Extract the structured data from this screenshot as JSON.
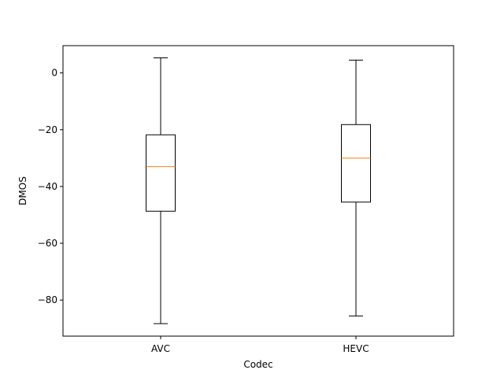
{
  "chart_data": {
    "type": "box",
    "title": "",
    "xlabel": "Codec",
    "ylabel": "DMOS",
    "categories": [
      "AVC",
      "HEVC"
    ],
    "boxes": [
      {
        "label": "AVC",
        "whisker_low": -88.3,
        "q1": -48.7,
        "median": -33.0,
        "q3": -21.8,
        "whisker_high": 5.3
      },
      {
        "label": "HEVC",
        "whisker_low": -85.6,
        "q1": -45.5,
        "median": -30.0,
        "q3": -18.2,
        "whisker_high": 4.5
      }
    ],
    "ylim": [
      -92.7,
      9.6
    ],
    "yticks": [
      0,
      -20,
      -40,
      -60,
      -80
    ],
    "ytick_labels": [
      "0",
      "−20",
      "−40",
      "−60",
      "−80"
    ],
    "grid": false,
    "legend": "none",
    "colors": {
      "box": "#000000",
      "median": "#ff7f0e"
    }
  }
}
